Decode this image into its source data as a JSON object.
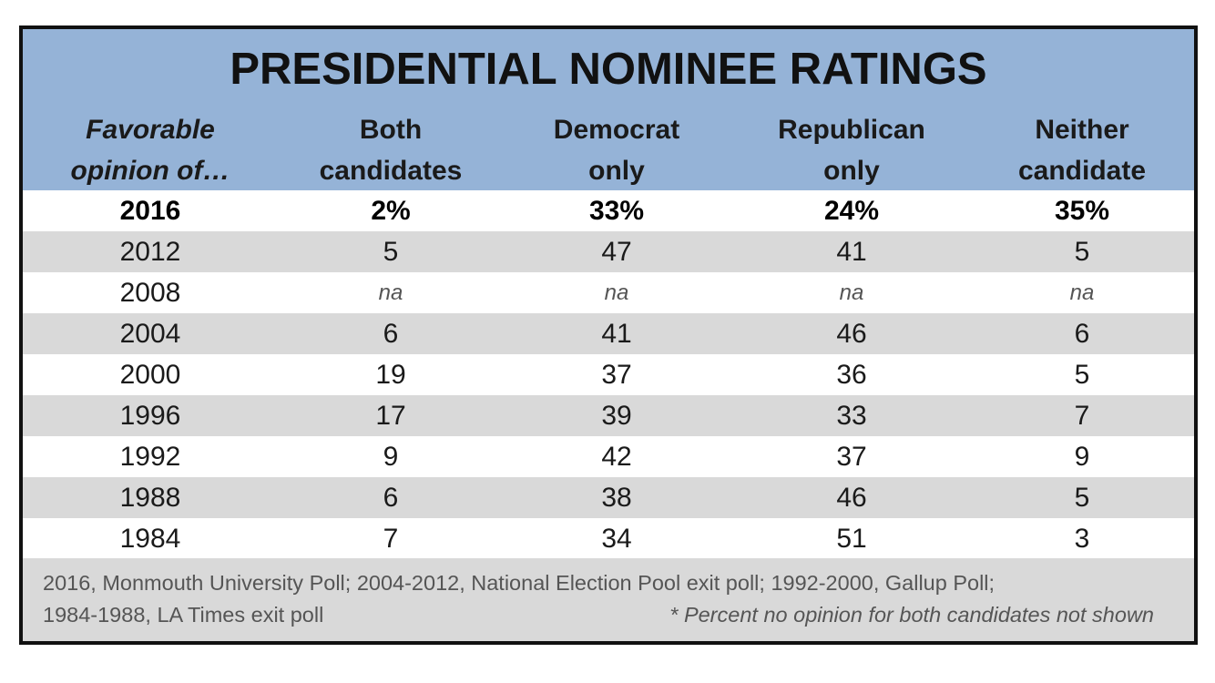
{
  "chart_data": {
    "type": "table",
    "title": "PRESIDENTIAL NOMINEE RATINGS",
    "columns": [
      [
        "Favorable",
        "opinion of…"
      ],
      [
        "Both",
        "candidates"
      ],
      [
        "Democrat",
        "only"
      ],
      [
        "Republican",
        "only"
      ],
      [
        "Neither",
        "candidate"
      ]
    ],
    "rows": [
      {
        "year": "2016",
        "values": [
          "2%",
          "33%",
          "24%",
          "35%"
        ]
      },
      {
        "year": "2012",
        "values": [
          "5",
          "47",
          "41",
          "5"
        ]
      },
      {
        "year": "2008",
        "values": [
          "na",
          "na",
          "na",
          "na"
        ]
      },
      {
        "year": "2004",
        "values": [
          "6",
          "41",
          "46",
          "6"
        ]
      },
      {
        "year": "2000",
        "values": [
          "19",
          "37",
          "36",
          "5"
        ]
      },
      {
        "year": "1996",
        "values": [
          "17",
          "39",
          "33",
          "7"
        ]
      },
      {
        "year": "1992",
        "values": [
          "9",
          "42",
          "37",
          "9"
        ]
      },
      {
        "year": "1988",
        "values": [
          "6",
          "38",
          "46",
          "5"
        ]
      },
      {
        "year": "1984",
        "values": [
          "7",
          "34",
          "51",
          "3"
        ]
      }
    ],
    "sources": [
      "2016, Monmouth University Poll;  2004-2012, National Election Pool exit poll;  1992-2000, Gallup Poll;",
      "1984-1988, LA Times exit poll"
    ],
    "note": "* Percent no opinion for both candidates not shown",
    "colors": {
      "header": "#95b3d7",
      "shaded_row": "#d9d9d9",
      "border": "#111111"
    }
  }
}
